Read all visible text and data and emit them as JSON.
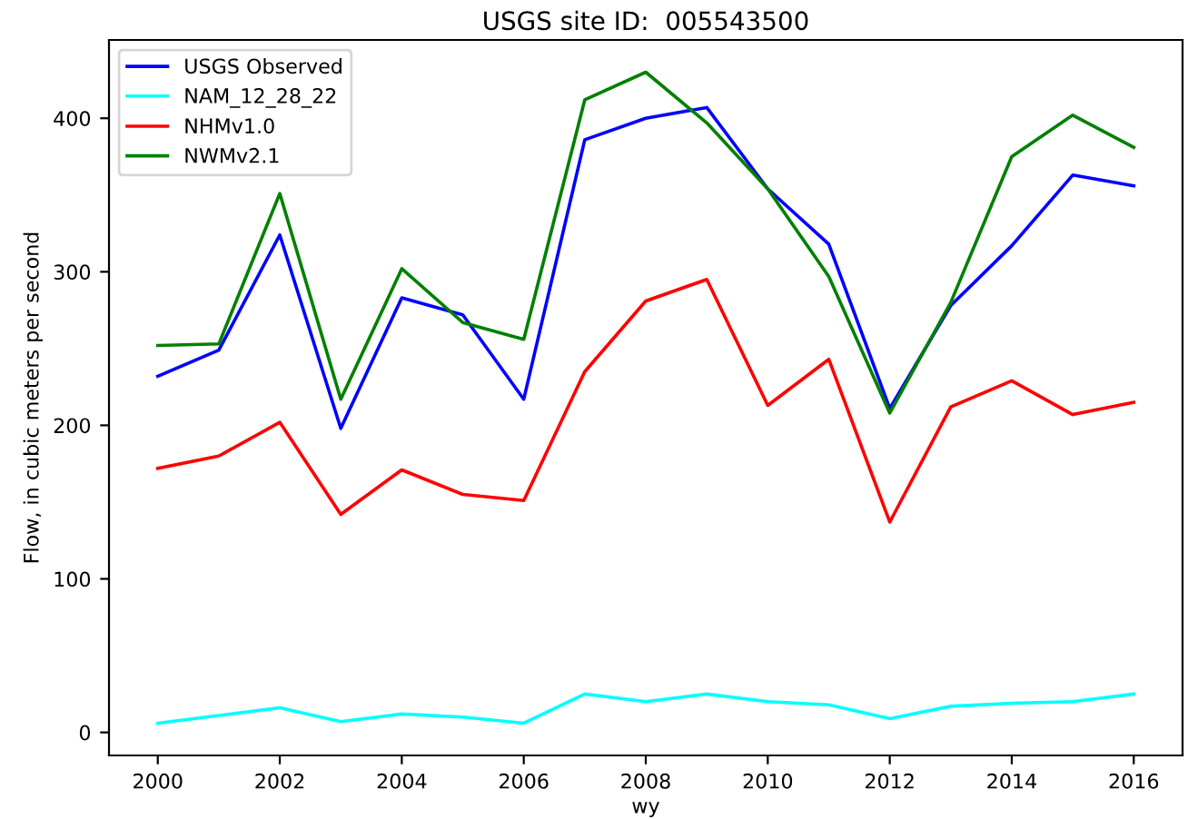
{
  "chart_data": {
    "type": "line",
    "title": "USGS site ID:  005543500",
    "xlabel": "wy",
    "ylabel": "Flow, in cubic meters per second",
    "x": [
      2000,
      2001,
      2002,
      2003,
      2004,
      2005,
      2006,
      2007,
      2008,
      2009,
      2010,
      2011,
      2012,
      2013,
      2014,
      2015,
      2016
    ],
    "series": [
      {
        "name": "USGS Observed",
        "color": "#0000ff",
        "values": [
          232,
          249,
          324,
          198,
          283,
          272,
          217,
          386,
          400,
          407,
          354,
          318,
          211,
          278,
          317,
          363,
          356
        ]
      },
      {
        "name": "NAM_12_28_22",
        "color": "#00ffff",
        "values": [
          6,
          11,
          16,
          7,
          12,
          10,
          6,
          25,
          20,
          25,
          20,
          18,
          9,
          17,
          19,
          20,
          25
        ]
      },
      {
        "name": "NHMv1.0",
        "color": "#ff0000",
        "values": [
          172,
          180,
          202,
          142,
          171,
          155,
          151,
          235,
          281,
          295,
          213,
          243,
          137,
          212,
          229,
          207,
          215
        ]
      },
      {
        "name": "NWMv2.1",
        "color": "#008000",
        "values": [
          252,
          253,
          351,
          217,
          302,
          267,
          256,
          412,
          430,
          397,
          354,
          297,
          208,
          280,
          375,
          402,
          381
        ]
      }
    ],
    "xlim": [
      1999.2,
      2016.8
    ],
    "xticks": [
      2000,
      2002,
      2004,
      2006,
      2008,
      2010,
      2012,
      2014,
      2016
    ],
    "ylim": [
      -15,
      451
    ],
    "yticks": [
      0,
      100,
      200,
      300,
      400
    ],
    "grid": false,
    "legend": "top left",
    "line_style": "solid",
    "marker": "none"
  }
}
